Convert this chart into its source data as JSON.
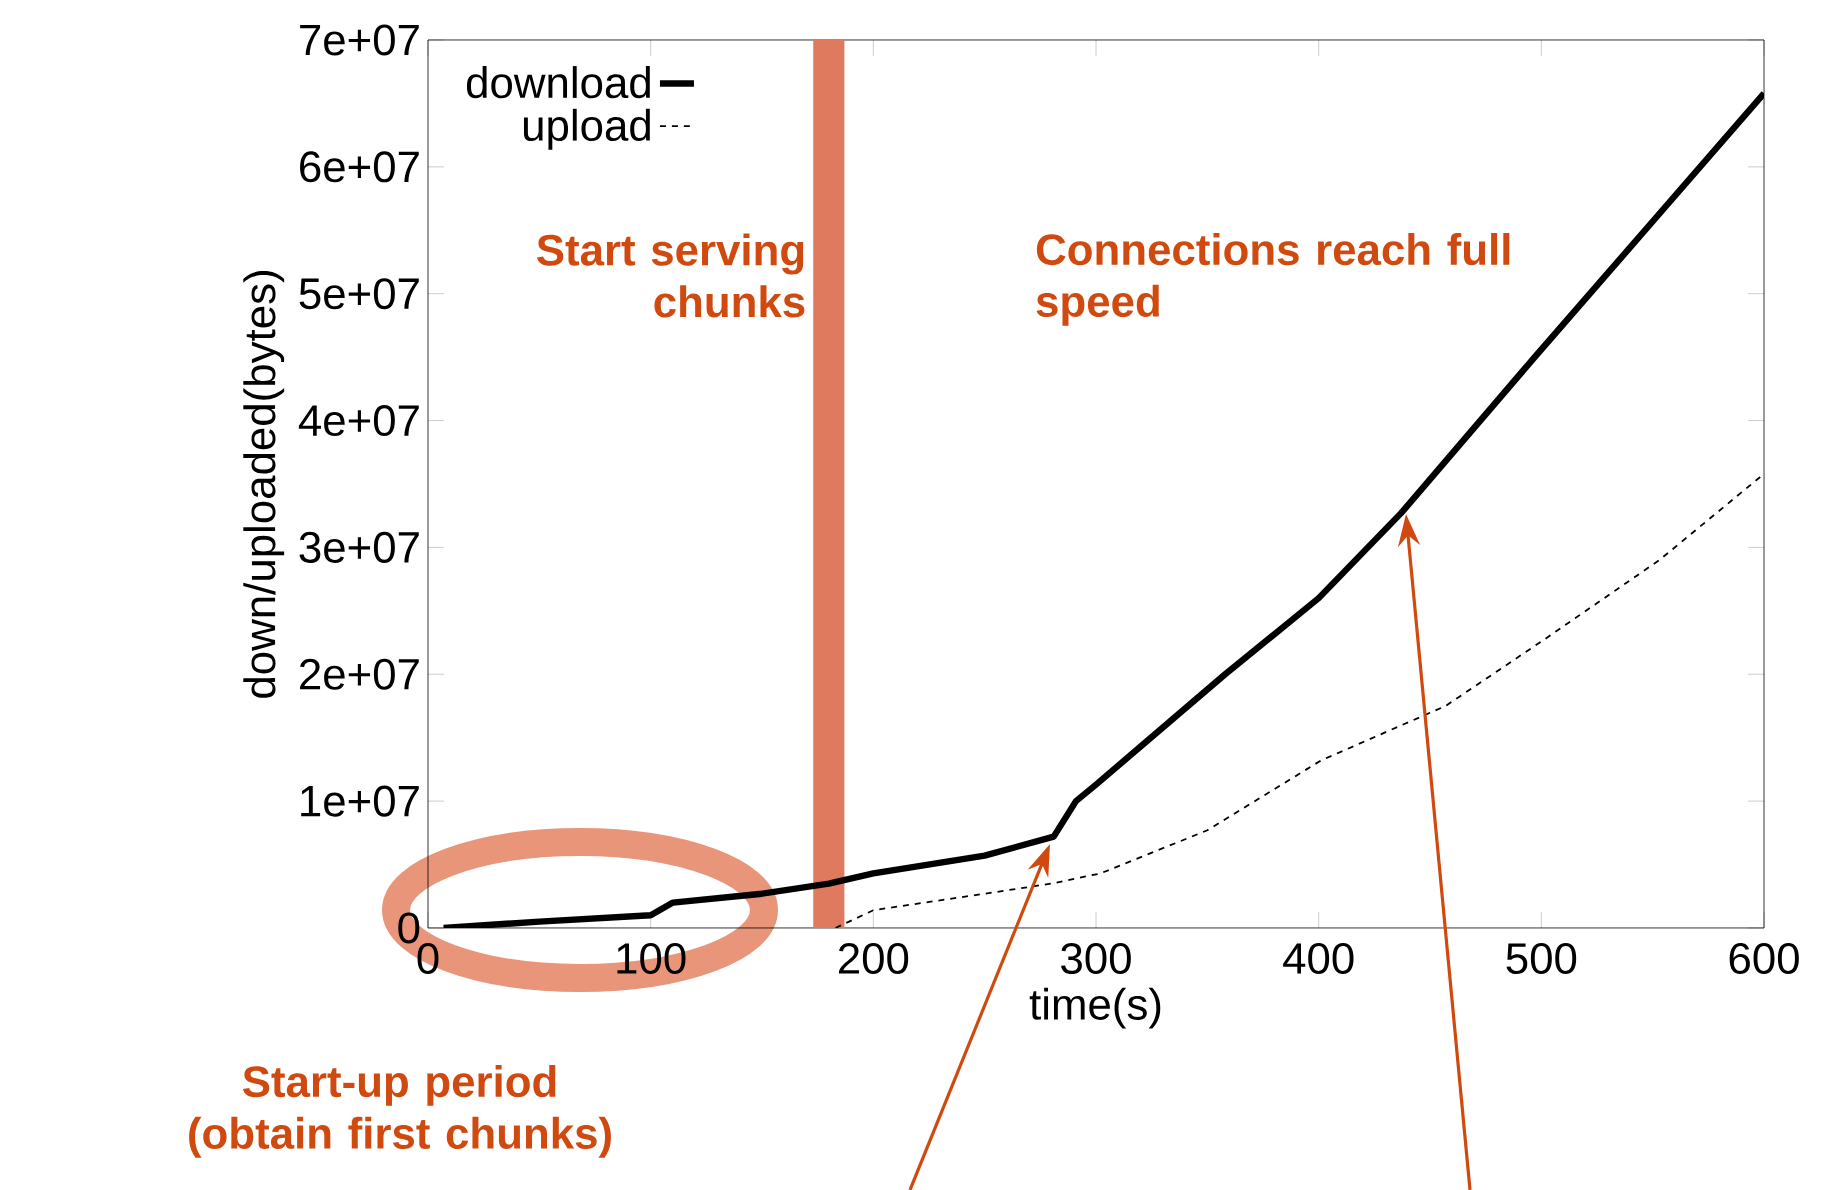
{
  "chart_data": {
    "type": "line",
    "xlabel": "time(s)",
    "ylabel": "down/uploaded(bytes)",
    "xlim": [
      0,
      600
    ],
    "ylim": [
      0,
      70000000
    ],
    "xticks": [
      0,
      100,
      200,
      300,
      400,
      500,
      600
    ],
    "yticks": [
      0,
      {
        "value": 10000000,
        "label": "1e+07"
      },
      {
        "value": 20000000,
        "label": "2e+07"
      },
      {
        "value": 30000000,
        "label": "3e+07"
      },
      {
        "value": 40000000,
        "label": "4e+07"
      },
      {
        "value": 50000000,
        "label": "5e+07"
      },
      {
        "value": 60000000,
        "label": "6e+07"
      },
      {
        "value": 70000000,
        "label": "7e+07"
      }
    ],
    "series": [
      {
        "name": "download",
        "color": "#000000",
        "line_style": "solid",
        "x": [
          7,
          50,
          100,
          110,
          150,
          180,
          200,
          250,
          281,
          291,
          300,
          358,
          400,
          437,
          497,
          553,
          600
        ],
        "values": [
          0,
          500000,
          1000000,
          2000000,
          2700000,
          3500000,
          4300000,
          5700000,
          7200000,
          10000000,
          11300000,
          20000000,
          26000000,
          32700000,
          45000000,
          56300000,
          65800000
        ]
      },
      {
        "name": "upload",
        "color": "#000000",
        "line_style": "dashed",
        "x": [
          183,
          200,
          250,
          280,
          302,
          350,
          401,
          457,
          501,
          553,
          600
        ],
        "values": [
          0,
          1400000,
          2700000,
          3500000,
          4300000,
          7700000,
          13200000,
          17500000,
          22700000,
          29000000,
          35800000
        ]
      }
    ],
    "bands": [
      {
        "axis": "x",
        "from": 173,
        "to": 187,
        "label": "Start serving chunks",
        "color": "#e07a5f"
      }
    ],
    "annotations": [
      "Connections reach full speed",
      "Start-up period (obtain first chunks)"
    ],
    "legend": "top left",
    "grid": false
  }
}
